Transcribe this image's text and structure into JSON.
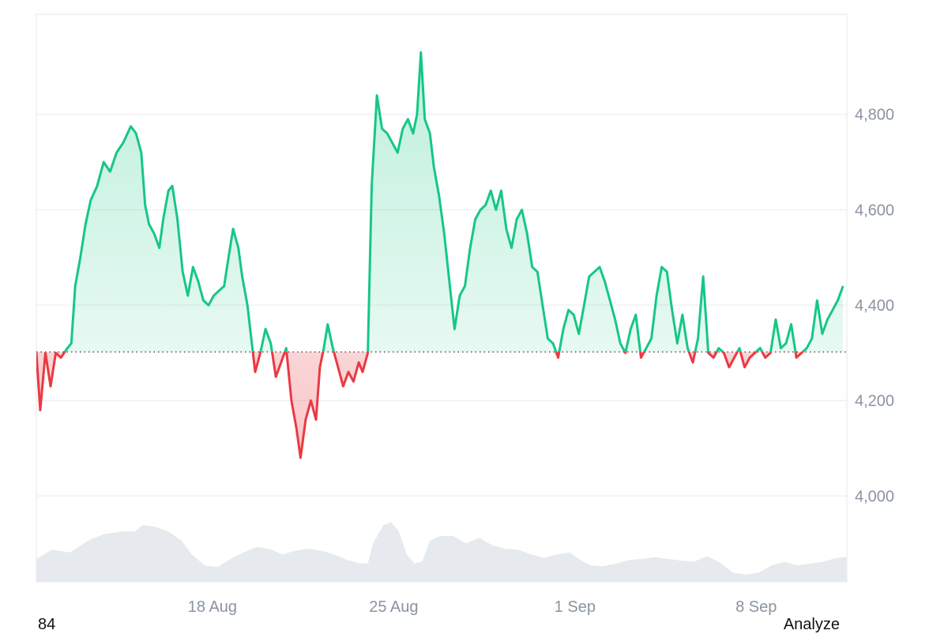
{
  "chart_data": {
    "type": "area",
    "y_ticks": [
      "4,000",
      "4,200",
      "4,400",
      "4,600",
      "4,800"
    ],
    "ylim": [
      3820,
      5010
    ],
    "baseline": 4302,
    "x_ticks": [
      {
        "label": "18 Aug",
        "day": 18
      },
      {
        "label": "25 Aug",
        "day": 25
      },
      {
        "label": "1 Sep",
        "day": 32
      },
      {
        "label": "8 Sep",
        "day": 39
      }
    ],
    "x_range": [
      11.2,
      42.5
    ],
    "series": [
      {
        "values": [
          [
            11.2,
            4300
          ],
          [
            11.35,
            4180
          ],
          [
            11.55,
            4300
          ],
          [
            11.75,
            4230
          ],
          [
            11.95,
            4300
          ],
          [
            12.15,
            4290
          ],
          [
            12.4,
            4310
          ],
          [
            12.55,
            4320
          ],
          [
            12.7,
            4440
          ],
          [
            12.9,
            4500
          ],
          [
            13.1,
            4570
          ],
          [
            13.3,
            4620
          ],
          [
            13.55,
            4650
          ],
          [
            13.8,
            4700
          ],
          [
            14.05,
            4680
          ],
          [
            14.3,
            4720
          ],
          [
            14.55,
            4740
          ],
          [
            14.85,
            4775
          ],
          [
            15.05,
            4760
          ],
          [
            15.25,
            4720
          ],
          [
            15.4,
            4610
          ],
          [
            15.55,
            4570
          ],
          [
            15.75,
            4550
          ],
          [
            15.95,
            4520
          ],
          [
            16.1,
            4580
          ],
          [
            16.3,
            4640
          ],
          [
            16.45,
            4650
          ],
          [
            16.65,
            4580
          ],
          [
            16.85,
            4470
          ],
          [
            17.05,
            4420
          ],
          [
            17.25,
            4480
          ],
          [
            17.45,
            4450
          ],
          [
            17.65,
            4410
          ],
          [
            17.85,
            4400
          ],
          [
            18.05,
            4420
          ],
          [
            18.25,
            4430
          ],
          [
            18.45,
            4440
          ],
          [
            18.65,
            4510
          ],
          [
            18.8,
            4560
          ],
          [
            19.0,
            4520
          ],
          [
            19.15,
            4460
          ],
          [
            19.35,
            4400
          ],
          [
            19.5,
            4330
          ],
          [
            19.65,
            4260
          ],
          [
            19.85,
            4300
          ],
          [
            20.05,
            4350
          ],
          [
            20.25,
            4320
          ],
          [
            20.45,
            4250
          ],
          [
            20.65,
            4280
          ],
          [
            20.85,
            4310
          ],
          [
            21.05,
            4200
          ],
          [
            21.25,
            4140
          ],
          [
            21.4,
            4080
          ],
          [
            21.6,
            4160
          ],
          [
            21.8,
            4200
          ],
          [
            22.0,
            4160
          ],
          [
            22.15,
            4270
          ],
          [
            22.3,
            4310
          ],
          [
            22.45,
            4360
          ],
          [
            22.65,
            4310
          ],
          [
            22.85,
            4270
          ],
          [
            23.05,
            4230
          ],
          [
            23.25,
            4260
          ],
          [
            23.45,
            4240
          ],
          [
            23.65,
            4280
          ],
          [
            23.8,
            4260
          ],
          [
            24.0,
            4300
          ],
          [
            24.15,
            4650
          ],
          [
            24.35,
            4840
          ],
          [
            24.55,
            4770
          ],
          [
            24.75,
            4760
          ],
          [
            24.95,
            4740
          ],
          [
            25.15,
            4720
          ],
          [
            25.35,
            4770
          ],
          [
            25.55,
            4790
          ],
          [
            25.75,
            4760
          ],
          [
            25.9,
            4800
          ],
          [
            26.05,
            4930
          ],
          [
            26.2,
            4790
          ],
          [
            26.4,
            4760
          ],
          [
            26.55,
            4690
          ],
          [
            26.75,
            4630
          ],
          [
            26.95,
            4550
          ],
          [
            27.15,
            4450
          ],
          [
            27.35,
            4350
          ],
          [
            27.55,
            4420
          ],
          [
            27.75,
            4440
          ],
          [
            27.95,
            4520
          ],
          [
            28.15,
            4580
          ],
          [
            28.35,
            4600
          ],
          [
            28.55,
            4610
          ],
          [
            28.75,
            4640
          ],
          [
            28.95,
            4600
          ],
          [
            29.15,
            4640
          ],
          [
            29.35,
            4560
          ],
          [
            29.55,
            4520
          ],
          [
            29.75,
            4580
          ],
          [
            29.95,
            4600
          ],
          [
            30.15,
            4550
          ],
          [
            30.35,
            4480
          ],
          [
            30.55,
            4470
          ],
          [
            30.75,
            4400
          ],
          [
            30.95,
            4330
          ],
          [
            31.15,
            4320
          ],
          [
            31.35,
            4290
          ],
          [
            31.55,
            4350
          ],
          [
            31.75,
            4390
          ],
          [
            31.95,
            4380
          ],
          [
            32.15,
            4340
          ],
          [
            32.35,
            4400
          ],
          [
            32.55,
            4460
          ],
          [
            32.75,
            4470
          ],
          [
            32.95,
            4480
          ],
          [
            33.15,
            4450
          ],
          [
            33.35,
            4410
          ],
          [
            33.55,
            4370
          ],
          [
            33.75,
            4320
          ],
          [
            33.95,
            4300
          ],
          [
            34.15,
            4350
          ],
          [
            34.35,
            4380
          ],
          [
            34.55,
            4290
          ],
          [
            34.75,
            4310
          ],
          [
            34.95,
            4330
          ],
          [
            35.15,
            4420
          ],
          [
            35.35,
            4480
          ],
          [
            35.55,
            4470
          ],
          [
            35.75,
            4390
          ],
          [
            35.95,
            4320
          ],
          [
            36.15,
            4380
          ],
          [
            36.35,
            4310
          ],
          [
            36.55,
            4280
          ],
          [
            36.75,
            4330
          ],
          [
            36.95,
            4460
          ],
          [
            37.15,
            4300
          ],
          [
            37.35,
            4290
          ],
          [
            37.55,
            4310
          ],
          [
            37.75,
            4300
          ],
          [
            37.95,
            4270
          ],
          [
            38.15,
            4290
          ],
          [
            38.35,
            4310
          ],
          [
            38.55,
            4270
          ],
          [
            38.75,
            4290
          ],
          [
            38.95,
            4300
          ],
          [
            39.15,
            4310
          ],
          [
            39.35,
            4290
          ],
          [
            39.55,
            4300
          ],
          [
            39.75,
            4370
          ],
          [
            39.95,
            4310
          ],
          [
            40.15,
            4320
          ],
          [
            40.35,
            4360
          ],
          [
            40.55,
            4290
          ],
          [
            40.75,
            4300
          ],
          [
            40.95,
            4310
          ],
          [
            41.15,
            4330
          ],
          [
            41.35,
            4410
          ],
          [
            41.55,
            4340
          ],
          [
            41.75,
            4370
          ],
          [
            41.95,
            4390
          ],
          [
            42.15,
            4410
          ],
          [
            42.35,
            4440
          ]
        ]
      }
    ],
    "volume_profile": [
      [
        11.2,
        0.25
      ],
      [
        11.8,
        0.35
      ],
      [
        12.5,
        0.32
      ],
      [
        13.2,
        0.45
      ],
      [
        13.8,
        0.52
      ],
      [
        14.5,
        0.55
      ],
      [
        15.0,
        0.55
      ],
      [
        15.3,
        0.62
      ],
      [
        15.8,
        0.6
      ],
      [
        16.3,
        0.55
      ],
      [
        16.8,
        0.45
      ],
      [
        17.2,
        0.3
      ],
      [
        17.7,
        0.18
      ],
      [
        18.2,
        0.16
      ],
      [
        18.7,
        0.25
      ],
      [
        19.2,
        0.32
      ],
      [
        19.7,
        0.38
      ],
      [
        20.2,
        0.36
      ],
      [
        20.7,
        0.3
      ],
      [
        21.2,
        0.34
      ],
      [
        21.7,
        0.36
      ],
      [
        22.2,
        0.34
      ],
      [
        22.7,
        0.3
      ],
      [
        23.2,
        0.24
      ],
      [
        23.7,
        0.2
      ],
      [
        24.0,
        0.2
      ],
      [
        24.2,
        0.42
      ],
      [
        24.6,
        0.62
      ],
      [
        24.9,
        0.65
      ],
      [
        25.2,
        0.55
      ],
      [
        25.5,
        0.3
      ],
      [
        25.8,
        0.2
      ],
      [
        26.1,
        0.22
      ],
      [
        26.4,
        0.45
      ],
      [
        26.8,
        0.5
      ],
      [
        27.3,
        0.5
      ],
      [
        27.8,
        0.42
      ],
      [
        28.3,
        0.48
      ],
      [
        28.8,
        0.4
      ],
      [
        29.3,
        0.36
      ],
      [
        29.8,
        0.35
      ],
      [
        30.3,
        0.3
      ],
      [
        30.8,
        0.26
      ],
      [
        31.3,
        0.3
      ],
      [
        31.8,
        0.32
      ],
      [
        32.2,
        0.24
      ],
      [
        32.6,
        0.18
      ],
      [
        33.1,
        0.17
      ],
      [
        33.6,
        0.2
      ],
      [
        34.1,
        0.24
      ],
      [
        34.6,
        0.25
      ],
      [
        35.1,
        0.27
      ],
      [
        35.6,
        0.25
      ],
      [
        36.1,
        0.23
      ],
      [
        36.6,
        0.22
      ],
      [
        37.1,
        0.28
      ],
      [
        37.6,
        0.21
      ],
      [
        38.1,
        0.1
      ],
      [
        38.6,
        0.08
      ],
      [
        39.1,
        0.1
      ],
      [
        39.6,
        0.18
      ],
      [
        40.1,
        0.22
      ],
      [
        40.6,
        0.18
      ],
      [
        41.1,
        0.2
      ],
      [
        41.6,
        0.22
      ],
      [
        42.1,
        0.26
      ],
      [
        42.5,
        0.27
      ]
    ]
  },
  "colors": {
    "up": "#16c784",
    "down": "#ea3943",
    "up_fill": "#16c784",
    "down_fill": "#ea3943",
    "grid": "#e8ebef",
    "baseline_dots": "#444444",
    "volume": "#e6eaee",
    "axis_text": "#8a93a1"
  },
  "footer": {
    "left_text": "84",
    "right_text": "Analyze"
  }
}
